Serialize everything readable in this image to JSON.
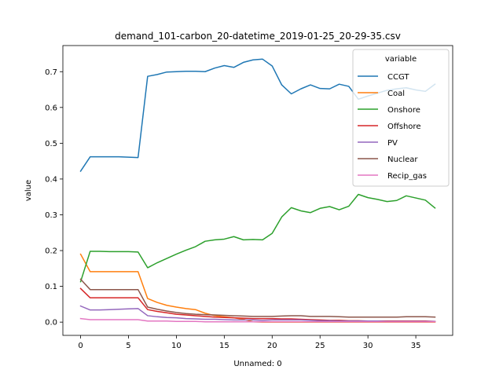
{
  "chart_data": {
    "type": "line",
    "title": "demand_101-carbon_20-datetime_2019-01-25_20-29-35.csv",
    "xlabel": "Unnamed: 0",
    "ylabel": "value",
    "xlim": [
      -1.85,
      38.85
    ],
    "ylim": [
      -0.037,
      0.773
    ],
    "xticks": [
      0,
      5,
      10,
      15,
      20,
      25,
      30,
      35
    ],
    "yticks": [
      0.0,
      0.1,
      0.2,
      0.3,
      0.4,
      0.5,
      0.6,
      0.7
    ],
    "ytick_labels": [
      "0.0",
      "0.1",
      "0.2",
      "0.3",
      "0.4",
      "0.5",
      "0.6",
      "0.7"
    ],
    "grid": false,
    "legend": {
      "title": "variable",
      "placement": "top-right"
    },
    "x": [
      0,
      1,
      2,
      3,
      4,
      5,
      6,
      7,
      8,
      9,
      10,
      11,
      12,
      13,
      14,
      15,
      16,
      17,
      18,
      19,
      20,
      21,
      22,
      23,
      24,
      25,
      26,
      27,
      28,
      29,
      30,
      31,
      32,
      33,
      34,
      35,
      36,
      37
    ],
    "series": [
      {
        "name": "CCGT",
        "color": "#1f77b4",
        "values": [
          0.422,
          0.462,
          0.462,
          0.462,
          0.462,
          0.461,
          0.46,
          0.687,
          0.692,
          0.699,
          0.7,
          0.701,
          0.701,
          0.7,
          0.71,
          0.717,
          0.712,
          0.726,
          0.733,
          0.735,
          0.716,
          0.663,
          0.638,
          0.652,
          0.663,
          0.653,
          0.652,
          0.665,
          0.659,
          0.623,
          0.632,
          0.64,
          0.648,
          0.652,
          0.655,
          0.649,
          0.645,
          0.665
        ]
      },
      {
        "name": "Coal",
        "color": "#ff7f0e",
        "values": [
          0.19,
          0.141,
          0.141,
          0.141,
          0.141,
          0.141,
          0.141,
          0.066,
          0.055,
          0.047,
          0.042,
          0.038,
          0.035,
          0.025,
          0.018,
          0.015,
          0.012,
          0.008,
          0.001,
          0.0,
          0.0,
          0.0,
          0.0,
          0.0,
          0.0,
          0.0,
          0.0,
          0.0,
          0.0,
          0.0,
          0.0,
          0.0,
          0.0,
          0.0,
          0.0,
          0.0,
          0.0,
          0.0
        ]
      },
      {
        "name": "Onshore",
        "color": "#2ca02c",
        "values": [
          0.113,
          0.198,
          0.198,
          0.197,
          0.197,
          0.197,
          0.196,
          0.152,
          0.166,
          0.178,
          0.19,
          0.201,
          0.211,
          0.226,
          0.23,
          0.232,
          0.239,
          0.23,
          0.231,
          0.23,
          0.248,
          0.294,
          0.32,
          0.311,
          0.306,
          0.318,
          0.323,
          0.314,
          0.324,
          0.357,
          0.348,
          0.343,
          0.337,
          0.34,
          0.353,
          0.347,
          0.341,
          0.319
        ]
      },
      {
        "name": "Offshore",
        "color": "#d62728",
        "values": [
          0.094,
          0.068,
          0.068,
          0.068,
          0.068,
          0.068,
          0.068,
          0.035,
          0.03,
          0.026,
          0.022,
          0.02,
          0.018,
          0.016,
          0.014,
          0.013,
          0.012,
          0.011,
          0.01,
          0.01,
          0.01,
          0.009,
          0.009,
          0.008,
          0.007,
          0.006,
          0.005,
          0.005,
          0.004,
          0.004,
          0.003,
          0.003,
          0.003,
          0.003,
          0.003,
          0.003,
          0.003,
          0.002
        ]
      },
      {
        "name": "PV",
        "color": "#9467bd",
        "values": [
          0.045,
          0.034,
          0.034,
          0.035,
          0.036,
          0.037,
          0.038,
          0.018,
          0.015,
          0.013,
          0.012,
          0.01,
          0.009,
          0.008,
          0.008,
          0.007,
          0.006,
          0.006,
          0.006,
          0.005,
          0.006,
          0.006,
          0.006,
          0.006,
          0.005,
          0.004,
          0.004,
          0.003,
          0.003,
          0.003,
          0.003,
          0.003,
          0.002,
          0.002,
          0.002,
          0.002,
          0.002,
          0.002
        ]
      },
      {
        "name": "Nuclear",
        "color": "#8c564b",
        "values": [
          0.12,
          0.091,
          0.091,
          0.091,
          0.091,
          0.091,
          0.091,
          0.042,
          0.036,
          0.031,
          0.027,
          0.024,
          0.022,
          0.021,
          0.02,
          0.019,
          0.018,
          0.017,
          0.016,
          0.016,
          0.016,
          0.017,
          0.018,
          0.018,
          0.016,
          0.016,
          0.016,
          0.015,
          0.014,
          0.014,
          0.014,
          0.014,
          0.014,
          0.014,
          0.015,
          0.015,
          0.015,
          0.014
        ]
      },
      {
        "name": "Recip_gas",
        "color": "#e377c2",
        "values": [
          0.01,
          0.007,
          0.007,
          0.007,
          0.007,
          0.007,
          0.007,
          0.003,
          0.003,
          0.003,
          0.002,
          0.002,
          0.002,
          0.001,
          0.001,
          0.001,
          0.001,
          0.001,
          0.001,
          0.001,
          0.001,
          0.001,
          0.001,
          0.001,
          0.001,
          0.001,
          0.001,
          0.001,
          0.001,
          0.001,
          0.001,
          0.001,
          0.001,
          0.001,
          0.001,
          0.001,
          0.001,
          0.001
        ]
      }
    ]
  }
}
